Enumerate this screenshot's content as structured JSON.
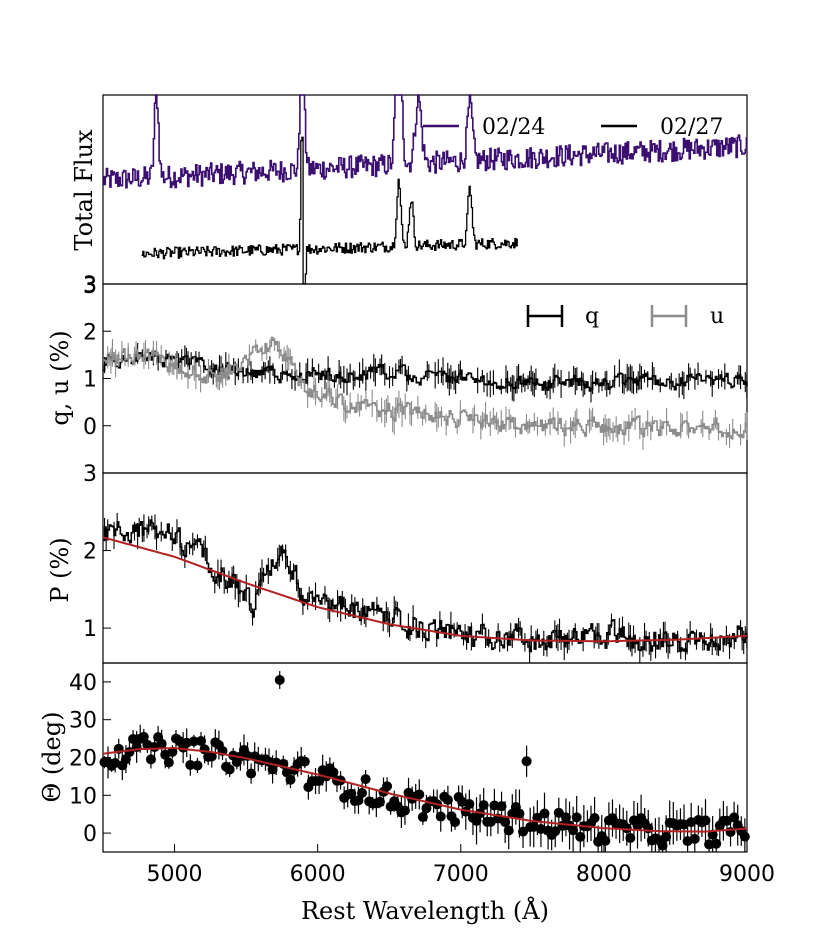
{
  "colors": {
    "purple": "#3b0f70",
    "black": "#000000",
    "gray": "#8c8c8c",
    "red": "#b22222"
  },
  "chart_data": [
    {
      "panel": "flux",
      "type": "line",
      "ylabel": "Total Flux",
      "xlim": [
        4500,
        9000
      ],
      "yticks": [
        "3"
      ],
      "legend": {
        "position": "top-right",
        "entries": [
          "02/24",
          "02/27"
        ]
      },
      "series": [
        {
          "name": "02/24",
          "color": "purple",
          "x_range": [
            4500,
            9000
          ],
          "level": 0.55,
          "trend": 0.18,
          "noise": 0.06,
          "features": [
            [
              4870,
              0.45,
              20
            ],
            [
              5890,
              0.95,
              18
            ],
            [
              6563,
              1.0,
              25
            ],
            [
              6700,
              0.35,
              30
            ],
            [
              7060,
              0.3,
              25
            ]
          ]
        },
        {
          "name": "02/27",
          "color": "black",
          "x_range": [
            4770,
            7400
          ],
          "level": 0.16,
          "trend": 0.1,
          "noise": 0.03,
          "features": [
            [
              5890,
              0.95,
              12
            ],
            [
              5900,
              -0.9,
              10
            ],
            [
              6563,
              0.35,
              20
            ],
            [
              6650,
              0.25,
              20
            ],
            [
              7060,
              0.3,
              20
            ]
          ]
        }
      ]
    },
    {
      "panel": "qu",
      "type": "line",
      "ylabel": "q, u (%)",
      "xlim": [
        4500,
        9000
      ],
      "ylim": [
        -1.0,
        3.0
      ],
      "yticks": [
        0,
        1,
        2,
        3
      ],
      "legend": {
        "position": "top-right",
        "entries": [
          "q",
          "u"
        ]
      },
      "series": [
        {
          "name": "q",
          "color": "black",
          "knots": [
            [
              4500,
              1.3
            ],
            [
              4800,
              1.5
            ],
            [
              5500,
              1.1
            ],
            [
              6000,
              1.1
            ],
            [
              6500,
              1.1
            ],
            [
              7000,
              1.0
            ],
            [
              7500,
              0.9
            ],
            [
              8000,
              0.9
            ],
            [
              8500,
              0.95
            ],
            [
              9000,
              0.95
            ]
          ],
          "noise": 0.13
        },
        {
          "name": "u",
          "color": "gray",
          "knots": [
            [
              4500,
              1.4
            ],
            [
              4800,
              1.5
            ],
            [
              5300,
              1.0
            ],
            [
              5700,
              1.8
            ],
            [
              5900,
              0.8
            ],
            [
              6300,
              0.4
            ],
            [
              7000,
              0.15
            ],
            [
              7500,
              -0.05
            ],
            [
              8000,
              0.0
            ],
            [
              8500,
              -0.1
            ],
            [
              9000,
              0.0
            ]
          ],
          "noise": 0.15
        }
      ]
    },
    {
      "panel": "P",
      "type": "line",
      "ylabel": "P (%)",
      "xlim": [
        4500,
        9000
      ],
      "ylim": [
        0.55,
        3.0
      ],
      "yticks": [
        1,
        2,
        3
      ],
      "series": [
        {
          "name": "P",
          "color": "black",
          "knots": [
            [
              4500,
              2.2
            ],
            [
              4850,
              2.3
            ],
            [
              5300,
              1.8
            ],
            [
              5550,
              1.3
            ],
            [
              5750,
              2.1
            ],
            [
              5900,
              1.4
            ],
            [
              6400,
              1.15
            ],
            [
              7000,
              0.9
            ],
            [
              7500,
              0.85
            ],
            [
              8000,
              0.9
            ],
            [
              8500,
              0.85
            ],
            [
              9000,
              0.95
            ]
          ],
          "noise": 0.14
        },
        {
          "name": "P-fit",
          "color": "red",
          "knots": [
            [
              4500,
              2.17
            ],
            [
              5000,
              1.92
            ],
            [
              5500,
              1.58
            ],
            [
              6000,
              1.27
            ],
            [
              6500,
              1.05
            ],
            [
              7000,
              0.9
            ],
            [
              7500,
              0.84
            ],
            [
              8000,
              0.83
            ],
            [
              8500,
              0.85
            ],
            [
              9000,
              0.9
            ]
          ]
        }
      ]
    },
    {
      "panel": "theta",
      "type": "scatter",
      "ylabel": "Θ (deg)",
      "xlabel": "Rest Wavelength (Å)",
      "xlim": [
        4500,
        9000
      ],
      "ylim": [
        -5,
        45
      ],
      "yticks": [
        0,
        10,
        20,
        30,
        40
      ],
      "xticks": [
        5000,
        6000,
        7000,
        8000,
        9000
      ],
      "series": [
        {
          "name": "Θ",
          "color": "black",
          "x_range": [
            4500,
            9000
          ],
          "step": 25,
          "knots": [
            [
              4500,
              20
            ],
            [
              4700,
              22
            ],
            [
              5000,
              22
            ],
            [
              5400,
              20
            ],
            [
              5700,
              18
            ],
            [
              6000,
              15
            ],
            [
              6500,
              9
            ],
            [
              7000,
              6
            ],
            [
              7500,
              3
            ],
            [
              8000,
              1
            ],
            [
              8500,
              0
            ],
            [
              9000,
              1
            ]
          ],
          "noise": 3.5
        },
        {
          "name": "Θ-fit",
          "color": "red",
          "knots": [
            [
              4500,
              21
            ],
            [
              4750,
              22.2
            ],
            [
              5000,
              22.5
            ],
            [
              5250,
              21.5
            ],
            [
              5500,
              19.8
            ],
            [
              6000,
              15.5
            ],
            [
              6500,
              10.5
            ],
            [
              7000,
              6.2
            ],
            [
              7500,
              3.2
            ],
            [
              8000,
              1.3
            ],
            [
              8400,
              0.5
            ],
            [
              8700,
              0.4
            ],
            [
              9000,
              1.2
            ]
          ]
        }
      ]
    }
  ]
}
